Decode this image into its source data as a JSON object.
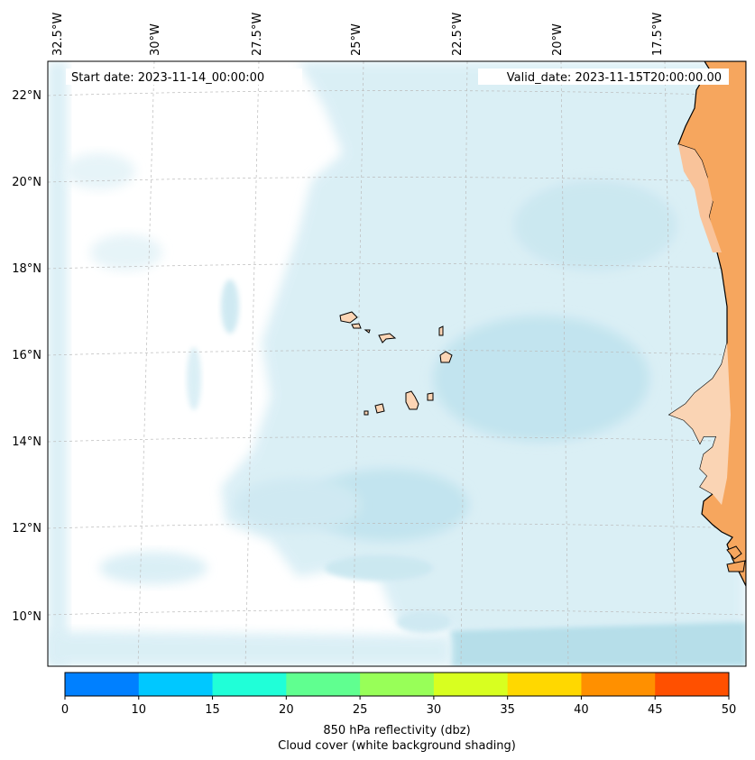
{
  "map": {
    "start_date_label": "Start date: 2023-11-14_00:00:00",
    "valid_date_label": "Valid_date: 2023-11-15T20:00:00.00",
    "longitude_labels": [
      "32.5°W",
      "30°W",
      "27.5°W",
      "25°W",
      "22.5°W",
      "20°W",
      "17.5°W"
    ],
    "latitude_labels": [
      "22°N",
      "20°N",
      "18°N",
      "16°N",
      "14°N",
      "12°N",
      "10°N"
    ],
    "colors": {
      "ocean_cloud": "#a9d9e6",
      "land_warm": "#f4a55e",
      "land_light": "#f9d3b1",
      "coastline": "#000000",
      "gridline": "#bbbbbb"
    }
  },
  "colorbar": {
    "tick_labels": [
      "0",
      "10",
      "15",
      "20",
      "25",
      "30",
      "35",
      "40",
      "45",
      "50"
    ],
    "bin_colors": [
      "#0080ff",
      "#00c8ff",
      "#20ffd8",
      "#60ff90",
      "#98ff58",
      "#d8ff20",
      "#ffd800",
      "#ff9000",
      "#ff5000"
    ],
    "label_line1": "850 hPa reflectivity (dbz)",
    "label_line2": "Cloud cover (white background shading)"
  }
}
